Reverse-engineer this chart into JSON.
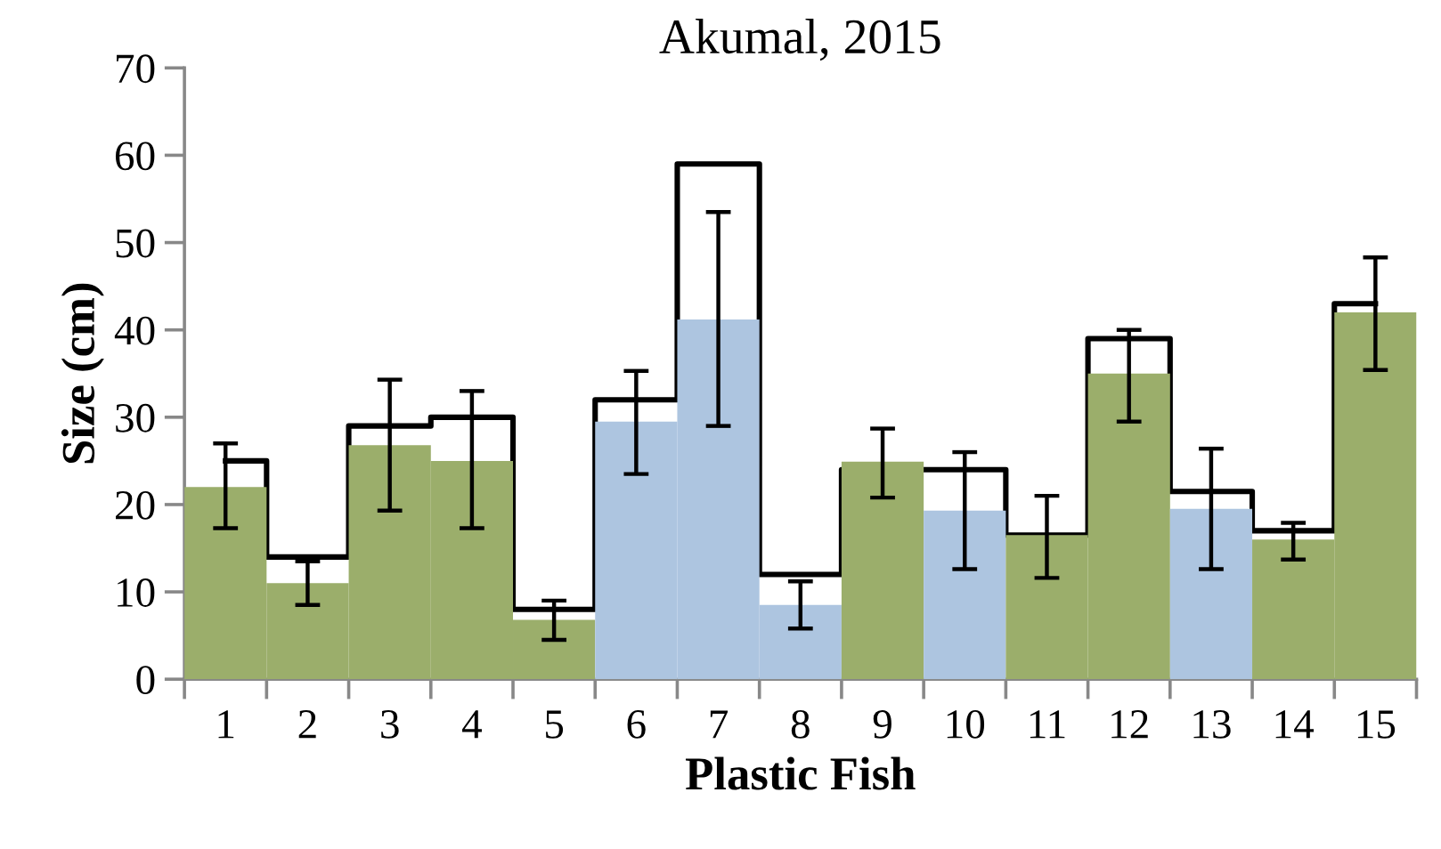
{
  "chart_data": {
    "type": "bar",
    "title": "Akumal, 2015",
    "xlabel": "Plastic Fish",
    "ylabel": "Size (cm)",
    "categories": [
      "1",
      "2",
      "3",
      "4",
      "5",
      "6",
      "7",
      "8",
      "9",
      "10",
      "11",
      "12",
      "13",
      "14",
      "15"
    ],
    "series": [
      {
        "type": "step",
        "color": "#000000",
        "values": [
          25,
          14,
          29,
          30,
          8,
          32,
          59,
          12,
          24,
          24,
          16.5,
          39,
          21.5,
          17,
          43
        ]
      },
      {
        "colors": [
          "#9bae6b",
          "#9bae6b",
          "#9bae6b",
          "#9bae6b",
          "#9bae6b",
          "#adc5e0",
          "#adc5e0",
          "#adc5e0",
          "#9bae6b",
          "#adc5e0",
          "#9bae6b",
          "#9bae6b",
          "#adc5e0",
          "#9bae6b",
          "#9bae6b"
        ],
        "values": [
          22,
          11,
          26.8,
          25,
          6.8,
          29.5,
          41.2,
          8.5,
          24.9,
          19.3,
          16.5,
          35,
          19.5,
          16,
          42
        ],
        "errors": [
          [
            17.3,
            27
          ],
          [
            8.5,
            13.5
          ],
          [
            19.3,
            34.3
          ],
          [
            17.3,
            33
          ],
          [
            4.5,
            9
          ],
          [
            23.5,
            35.3
          ],
          [
            29,
            53.5
          ],
          [
            5.8,
            11.2
          ],
          [
            20.8,
            28.7
          ],
          [
            12.6,
            26
          ],
          [
            11.6,
            21
          ],
          [
            29.5,
            40
          ],
          [
            12.6,
            26.4
          ],
          [
            13.7,
            17.9
          ],
          [
            35.4,
            48.3
          ]
        ]
      }
    ],
    "ylim": [
      0,
      70
    ],
    "yticks": [
      0,
      10,
      20,
      30,
      40,
      50,
      60,
      70
    ],
    "grid": false,
    "legend": false
  }
}
